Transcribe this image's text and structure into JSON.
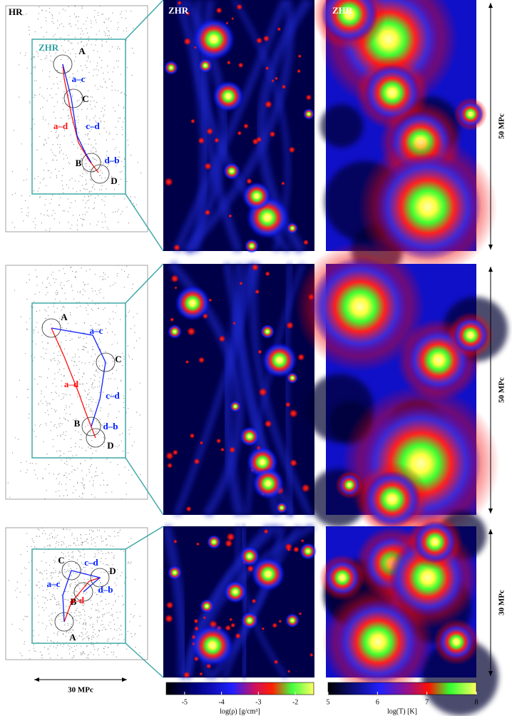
{
  "rows": [
    {
      "left_title": "HR",
      "zoom_title": "ZHR",
      "density_title": "ZHR",
      "temperature_title": "ZHR",
      "scale": "50 MPc",
      "labels": [
        "A",
        "B",
        "C",
        "D",
        "a–c",
        "a–d",
        "c–d",
        "d–b"
      ]
    },
    {
      "scale": "50 MPc",
      "labels": [
        "A",
        "B",
        "C",
        "D",
        "a–c",
        "a–d",
        "c–d",
        "d–b"
      ]
    },
    {
      "scale": "30 MPc",
      "labels": [
        "A",
        "B",
        "C",
        "D",
        "a–c",
        "a–d",
        "c–d",
        "d–b"
      ]
    }
  ],
  "bottom_scale": "30 MPc",
  "colorbars": [
    {
      "label": "log(ρ) [g/cm³]",
      "range": [
        -5.5,
        -1.5
      ],
      "ticks": [
        -5,
        -4,
        -3,
        -2
      ]
    },
    {
      "label": "log(T) [K]",
      "range": [
        5,
        8
      ],
      "ticks": [
        5,
        6,
        7,
        8
      ]
    }
  ]
}
